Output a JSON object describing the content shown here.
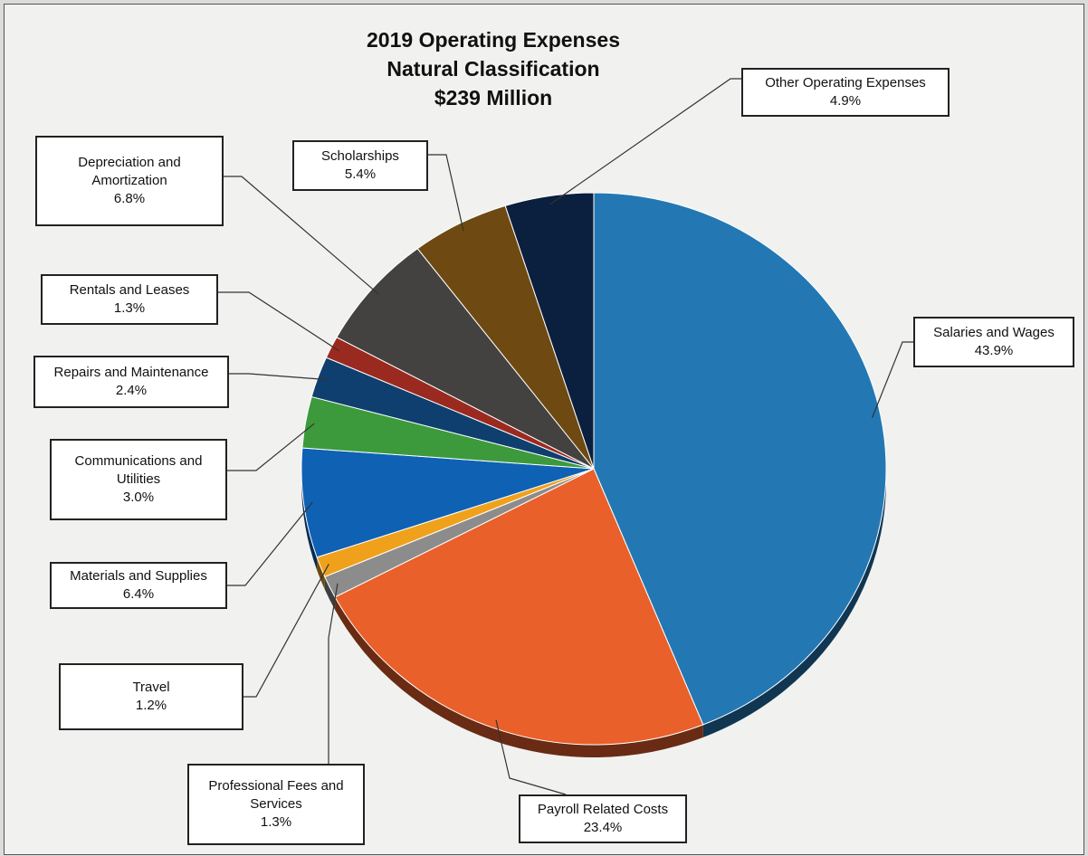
{
  "chart_data": {
    "type": "pie",
    "title": "2019 Operating Expenses",
    "subtitle": "Natural Classification",
    "total_label": "$239 Million",
    "slices": [
      {
        "label_lines": [
          "Salaries and Wages"
        ],
        "value": 43.9,
        "pct_label": "43.9%",
        "color": "#2378b3"
      },
      {
        "label_lines": [
          "Payroll Related Costs"
        ],
        "value": 23.4,
        "pct_label": "23.4%",
        "color": "#e9602b"
      },
      {
        "label_lines": [
          "Professional Fees and",
          "Services"
        ],
        "value": 1.3,
        "pct_label": "1.3%",
        "color": "#8c8c8c"
      },
      {
        "label_lines": [
          "Travel"
        ],
        "value": 1.2,
        "pct_label": "1.2%",
        "color": "#f0a11c"
      },
      {
        "label_lines": [
          "Materials and Supplies"
        ],
        "value": 6.4,
        "pct_label": "6.4%",
        "color": "#0f61b4"
      },
      {
        "label_lines": [
          "Communications and",
          "Utilities"
        ],
        "value": 3.0,
        "pct_label": "3.0%",
        "color": "#3c9a3c"
      },
      {
        "label_lines": [
          "Repairs and Maintenance"
        ],
        "value": 2.4,
        "pct_label": "2.4%",
        "color": "#0f3f6e"
      },
      {
        "label_lines": [
          "Rentals and Leases"
        ],
        "value": 1.3,
        "pct_label": "1.3%",
        "color": "#9a2a20"
      },
      {
        "label_lines": [
          "Depreciation and",
          "Amortization"
        ],
        "value": 6.8,
        "pct_label": "6.8%",
        "color": "#444240"
      },
      {
        "label_lines": [
          "Scholarships"
        ],
        "value": 5.4,
        "pct_label": "5.4%",
        "color": "#6e4a12"
      },
      {
        "label_lines": [
          "Other Operating Expenses"
        ],
        "value": 4.9,
        "pct_label": "4.9%",
        "color": "#0b1f3f"
      }
    ]
  }
}
